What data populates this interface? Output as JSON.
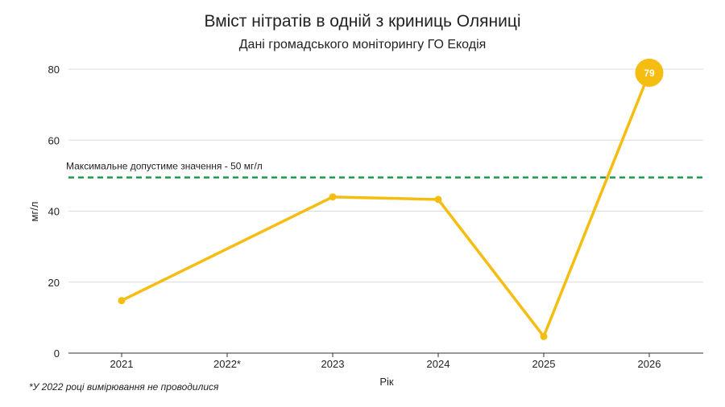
{
  "chart_data": {
    "type": "line",
    "title": "Вміст нітратів в одній з криниць Оляниці",
    "subtitle": "Дані громадського моніторингу ГО Екодія",
    "xlabel": "Рік",
    "ylabel": "мг/л",
    "categories": [
      "2021",
      "2022*",
      "2023",
      "2024",
      "2025",
      "2026"
    ],
    "series": [
      {
        "values": [
          14.8,
          null,
          44,
          43.3,
          4.7,
          79
        ],
        "color": "#f5bd0f"
      }
    ],
    "ylim": [
      0,
      80
    ],
    "yticks": [
      0,
      20,
      40,
      60,
      80
    ],
    "grid": true,
    "reference_line": {
      "value": 49.5,
      "label": "Максимальне допустиме значення - 50 мг/л",
      "color": "#1e9a4a",
      "style": "dashed"
    },
    "highlight": {
      "category": "2026",
      "label": "79",
      "color": "#f5bd0f"
    }
  },
  "footnote": "*У 2022 році вимірювання не проводилися"
}
